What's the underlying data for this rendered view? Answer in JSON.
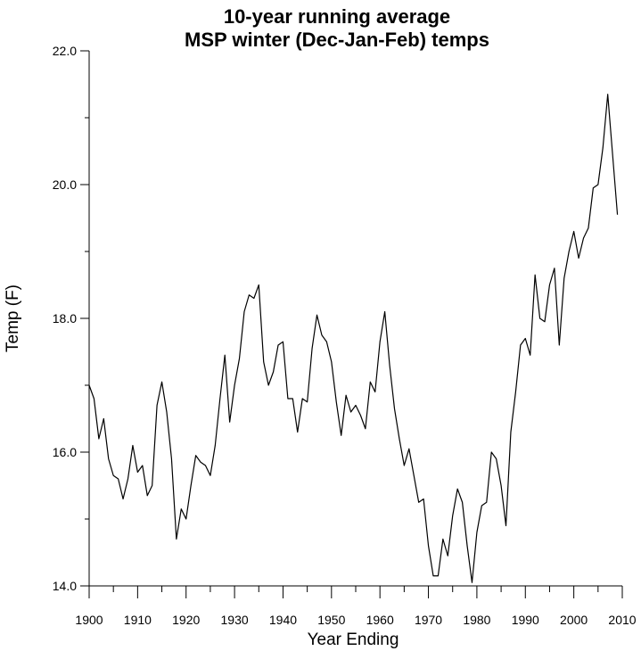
{
  "chart_data": {
    "type": "line",
    "title": "10-year running average",
    "subtitle": "MSP winter (Dec-Jan-Feb) temps",
    "xlabel": "Year Ending",
    "ylabel": "Temp (F)",
    "xlim": [
      1900,
      2010
    ],
    "ylim": [
      14.0,
      22.0
    ],
    "x_ticks": [
      1900,
      1910,
      1920,
      1930,
      1940,
      1950,
      1960,
      1970,
      1980,
      1990,
      2000,
      2010
    ],
    "y_ticks": [
      "14.0",
      "16.0",
      "18.0",
      "20.0",
      "22.0"
    ],
    "grid": false,
    "legend": "none",
    "line_color": "#000000",
    "series": [
      {
        "x": [
          1900,
          1901,
          1902,
          1903,
          1904,
          1905,
          1906,
          1907,
          1908,
          1909,
          1910,
          1911,
          1912,
          1913,
          1914,
          1915,
          1916,
          1917,
          1918,
          1919,
          1920,
          1921,
          1922,
          1923,
          1924,
          1925,
          1926,
          1927,
          1928,
          1929,
          1930,
          1931,
          1932,
          1933,
          1934,
          1935,
          1936,
          1937,
          1938,
          1939,
          1940,
          1941,
          1942,
          1943,
          1944,
          1945,
          1946,
          1947,
          1948,
          1949,
          1950,
          1951,
          1952,
          1953,
          1954,
          1955,
          1956,
          1957,
          1958,
          1959,
          1960,
          1961,
          1962,
          1963,
          1964,
          1965,
          1966,
          1967,
          1968,
          1969,
          1970,
          1971,
          1972,
          1973,
          1974,
          1975,
          1976,
          1977,
          1978,
          1979,
          1980,
          1981,
          1982,
          1983,
          1984,
          1985,
          1986,
          1987,
          1988,
          1989,
          1990,
          1991,
          1992,
          1993,
          1994,
          1995,
          1996,
          1997,
          1998,
          1999,
          2000,
          2001,
          2002,
          2003,
          2004,
          2005,
          2006,
          2007,
          2008,
          2009
        ],
        "values": [
          17.0,
          16.8,
          16.2,
          16.5,
          15.9,
          15.65,
          15.6,
          15.3,
          15.6,
          16.1,
          15.7,
          15.8,
          15.35,
          15.5,
          16.7,
          17.05,
          16.6,
          15.9,
          14.7,
          15.15,
          15.0,
          15.5,
          15.95,
          15.85,
          15.8,
          15.65,
          16.1,
          16.8,
          17.45,
          16.45,
          17.0,
          17.4,
          18.1,
          18.35,
          18.3,
          18.5,
          17.35,
          17.0,
          17.2,
          17.6,
          17.65,
          16.8,
          16.8,
          16.3,
          16.8,
          16.75,
          17.55,
          18.05,
          17.75,
          17.65,
          17.35,
          16.75,
          16.25,
          16.85,
          16.6,
          16.7,
          16.55,
          16.35,
          17.05,
          16.9,
          17.65,
          18.1,
          17.3,
          16.65,
          16.2,
          15.8,
          16.05,
          15.65,
          15.25,
          15.3,
          14.6,
          14.15,
          14.15,
          14.7,
          14.45,
          15.05,
          15.45,
          15.25,
          14.6,
          14.05,
          14.8,
          15.2,
          15.25,
          16.0,
          15.9,
          15.5,
          14.9,
          16.3,
          16.9,
          17.6,
          17.7,
          17.45,
          18.65,
          18.0,
          17.95,
          18.5,
          18.75,
          17.6,
          18.6,
          19.0,
          19.3,
          18.9,
          19.2,
          19.35,
          19.95,
          20.0,
          20.55,
          21.35,
          20.45,
          19.55
        ]
      }
    ]
  }
}
